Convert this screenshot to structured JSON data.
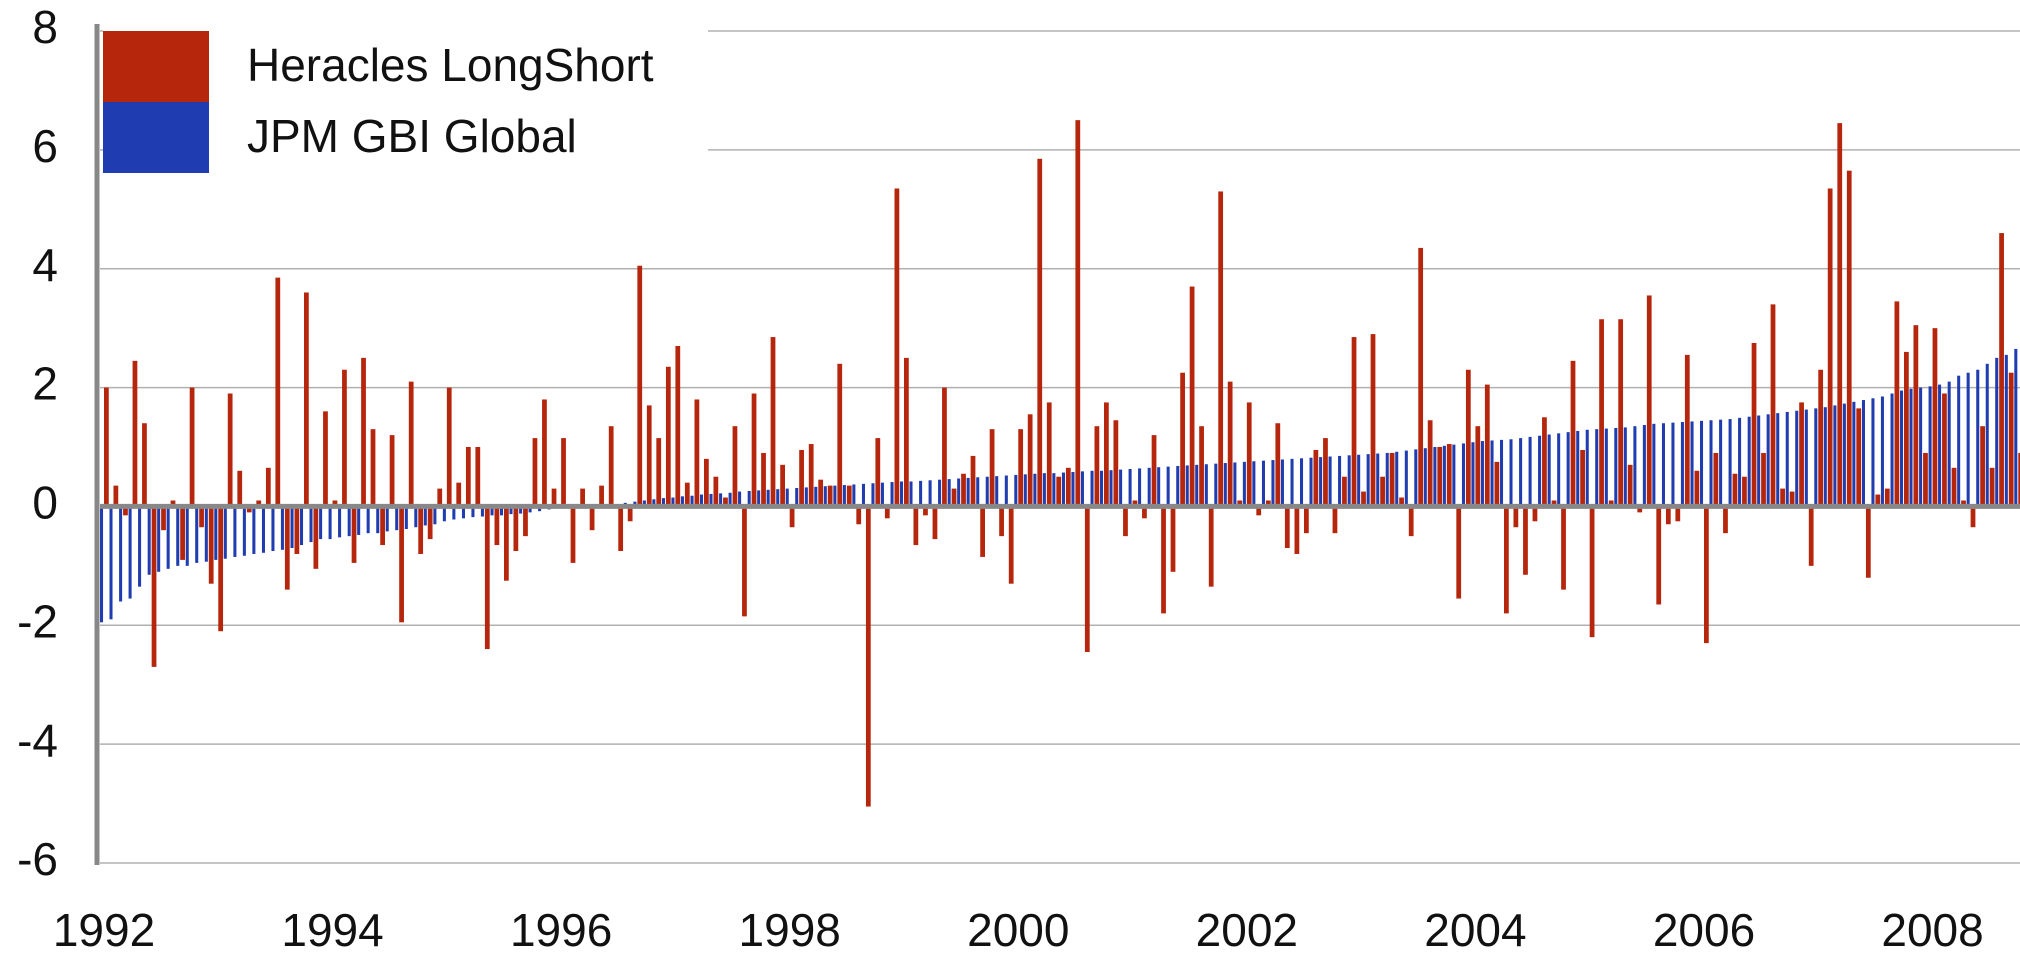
{
  "chart_data": {
    "type": "bar",
    "legend": "upper left",
    "grid": true,
    "xlim": [
      1992,
      2008.8
    ],
    "xticks": [
      1992,
      1994,
      1996,
      1998,
      2000,
      2002,
      2004,
      2006,
      2008
    ],
    "ylim": [
      -6,
      8
    ],
    "yticks": [
      -6,
      -4,
      -2,
      0,
      2,
      4,
      6,
      8
    ],
    "x": [
      1992.0,
      1992.083,
      1992.167,
      1992.25,
      1992.333,
      1992.417,
      1992.5,
      1992.583,
      1992.667,
      1992.75,
      1992.833,
      1992.917,
      1993.0,
      1993.083,
      1993.167,
      1993.25,
      1993.333,
      1993.417,
      1993.5,
      1993.583,
      1993.667,
      1993.75,
      1993.833,
      1993.917,
      1994.0,
      1994.083,
      1994.167,
      1994.25,
      1994.333,
      1994.417,
      1994.5,
      1994.583,
      1994.667,
      1994.75,
      1994.833,
      1994.917,
      1995.0,
      1995.083,
      1995.167,
      1995.25,
      1995.333,
      1995.417,
      1995.5,
      1995.583,
      1995.667,
      1995.75,
      1995.833,
      1995.917,
      1996.0,
      1996.083,
      1996.167,
      1996.25,
      1996.333,
      1996.417,
      1996.5,
      1996.583,
      1996.667,
      1996.75,
      1996.833,
      1996.917,
      1997.0,
      1997.083,
      1997.167,
      1997.25,
      1997.333,
      1997.417,
      1997.5,
      1997.583,
      1997.667,
      1997.75,
      1997.833,
      1997.917,
      1998.0,
      1998.083,
      1998.167,
      1998.25,
      1998.333,
      1998.417,
      1998.5,
      1998.583,
      1998.667,
      1998.75,
      1998.833,
      1998.917,
      1999.0,
      1999.083,
      1999.167,
      1999.25,
      1999.333,
      1999.417,
      1999.5,
      1999.583,
      1999.667,
      1999.75,
      1999.833,
      1999.917,
      2000.0,
      2000.083,
      2000.167,
      2000.25,
      2000.333,
      2000.417,
      2000.5,
      2000.583,
      2000.667,
      2000.75,
      2000.833,
      2000.917,
      2001.0,
      2001.083,
      2001.167,
      2001.25,
      2001.333,
      2001.417,
      2001.5,
      2001.583,
      2001.667,
      2001.75,
      2001.833,
      2001.917,
      2002.0,
      2002.083,
      2002.167,
      2002.25,
      2002.333,
      2002.417,
      2002.5,
      2002.583,
      2002.667,
      2002.75,
      2002.833,
      2002.917,
      2003.0,
      2003.083,
      2003.167,
      2003.25,
      2003.333,
      2003.417,
      2003.5,
      2003.583,
      2003.667,
      2003.75,
      2003.833,
      2003.917,
      2004.0,
      2004.083,
      2004.167,
      2004.25,
      2004.333,
      2004.417,
      2004.5,
      2004.583,
      2004.667,
      2004.75,
      2004.833,
      2004.917,
      2005.0,
      2005.083,
      2005.167,
      2005.25,
      2005.333,
      2005.417,
      2005.5,
      2005.583,
      2005.667,
      2005.75,
      2005.833,
      2005.917,
      2006.0,
      2006.083,
      2006.167,
      2006.25,
      2006.333,
      2006.417,
      2006.5,
      2006.583,
      2006.667,
      2006.75,
      2006.833,
      2006.917,
      2007.0,
      2007.083,
      2007.167,
      2007.25,
      2007.333,
      2007.417,
      2007.5,
      2007.583,
      2007.667,
      2007.75,
      2007.833,
      2007.917,
      2008.0,
      2008.083,
      2008.167,
      2008.25,
      2008.333,
      2008.417,
      2008.5,
      2008.583,
      2008.667,
      2008.75
    ],
    "series": [
      {
        "name": "Heracles LongShort",
        "color": "#b5260d",
        "values": [
          2.0,
          0.35,
          -0.15,
          2.45,
          1.4,
          -2.7,
          -0.4,
          0.1,
          -0.9,
          2.0,
          -0.35,
          -1.3,
          -2.1,
          1.9,
          0.6,
          -0.1,
          0.1,
          0.65,
          3.85,
          -1.4,
          -0.8,
          3.6,
          -1.05,
          1.6,
          0.1,
          2.3,
          -0.95,
          2.5,
          1.3,
          -0.65,
          1.2,
          -1.95,
          2.1,
          -0.8,
          -0.55,
          0.3,
          2.0,
          0.4,
          1.0,
          1.0,
          -2.4,
          -0.65,
          -1.25,
          -0.75,
          -0.5,
          1.15,
          1.8,
          0.3,
          1.15,
          -0.95,
          0.3,
          -0.4,
          0.35,
          1.35,
          -0.75,
          -0.25,
          4.05,
          1.7,
          1.15,
          2.35,
          2.7,
          0.4,
          1.8,
          0.8,
          0.5,
          0.15,
          1.35,
          -1.85,
          1.9,
          0.9,
          2.85,
          0.7,
          -0.35,
          0.95,
          1.05,
          0.45,
          0.35,
          2.4,
          0.35,
          -0.3,
          -5.05,
          1.15,
          -0.2,
          5.35,
          2.5,
          -0.65,
          -0.15,
          -0.55,
          2.0,
          0.3,
          0.55,
          0.85,
          -0.85,
          1.3,
          -0.5,
          -1.3,
          1.3,
          1.55,
          5.85,
          1.75,
          0.5,
          0.65,
          6.5,
          -2.45,
          1.35,
          1.75,
          1.45,
          -0.5,
          0.1,
          -0.2,
          1.2,
          -1.8,
          -1.1,
          2.25,
          3.7,
          1.35,
          -1.35,
          5.3,
          2.1,
          0.1,
          1.75,
          -0.15,
          0.1,
          1.4,
          -0.7,
          -0.8,
          -0.45,
          0.95,
          1.15,
          -0.45,
          0.5,
          2.85,
          0.25,
          2.9,
          0.5,
          0.9,
          0.15,
          -0.5,
          4.35,
          1.45,
          1.0,
          1.05,
          -1.55,
          2.3,
          1.35,
          2.05,
          0.75,
          -1.8,
          -0.35,
          -1.15,
          -0.25,
          1.5,
          0.1,
          -1.4,
          2.45,
          0.95,
          -2.2,
          3.15,
          0.1,
          3.15,
          0.7,
          -0.1,
          3.55,
          -1.65,
          -0.3,
          -0.25,
          2.55,
          0.6,
          -2.3,
          0.9,
          -0.45,
          0.55,
          0.5,
          2.75,
          0.9,
          3.4,
          0.3,
          0.25,
          1.75,
          -1.0,
          2.3,
          5.35,
          6.45,
          5.65,
          1.65,
          -1.2,
          0.2,
          0.3,
          3.45,
          2.6,
          3.05,
          0.9,
          3.0,
          1.9,
          0.65,
          0.1,
          -0.35,
          1.35,
          0.65,
          4.6,
          2.25,
          0.9
        ]
      },
      {
        "name": "JPM GBI Global",
        "color": "#1f3db0",
        "values": [
          -1.95,
          -1.9,
          -1.6,
          -1.55,
          -1.35,
          -1.15,
          -1.1,
          -1.05,
          -1.0,
          -1.0,
          -0.95,
          -0.93,
          -0.9,
          -0.88,
          -0.85,
          -0.83,
          -0.8,
          -0.78,
          -0.75,
          -0.73,
          -0.7,
          -0.65,
          -0.6,
          -0.55,
          -0.55,
          -0.52,
          -0.5,
          -0.48,
          -0.45,
          -0.45,
          -0.42,
          -0.4,
          -0.38,
          -0.35,
          -0.32,
          -0.3,
          -0.25,
          -0.22,
          -0.2,
          -0.18,
          -0.17,
          -0.15,
          -0.15,
          -0.13,
          -0.12,
          -0.1,
          -0.08,
          -0.05,
          -0.03,
          -0.02,
          -0.01,
          0.01,
          0.02,
          0.03,
          0.04,
          0.06,
          0.08,
          0.1,
          0.12,
          0.14,
          0.15,
          0.17,
          0.18,
          0.2,
          0.21,
          0.22,
          0.23,
          0.25,
          0.26,
          0.27,
          0.28,
          0.29,
          0.3,
          0.31,
          0.32,
          0.33,
          0.34,
          0.35,
          0.36,
          0.37,
          0.38,
          0.39,
          0.4,
          0.41,
          0.42,
          0.42,
          0.43,
          0.44,
          0.45,
          0.46,
          0.47,
          0.48,
          0.49,
          0.5,
          0.51,
          0.52,
          0.53,
          0.54,
          0.55,
          0.56,
          0.56,
          0.57,
          0.58,
          0.59,
          0.6,
          0.6,
          0.61,
          0.62,
          0.63,
          0.64,
          0.65,
          0.66,
          0.67,
          0.68,
          0.69,
          0.7,
          0.71,
          0.72,
          0.73,
          0.74,
          0.75,
          0.76,
          0.77,
          0.78,
          0.79,
          0.8,
          0.81,
          0.82,
          0.83,
          0.84,
          0.85,
          0.86,
          0.87,
          0.88,
          0.89,
          0.9,
          0.92,
          0.94,
          0.96,
          0.98,
          1.0,
          1.02,
          1.04,
          1.06,
          1.08,
          1.1,
          1.11,
          1.12,
          1.13,
          1.15,
          1.17,
          1.19,
          1.21,
          1.23,
          1.25,
          1.27,
          1.29,
          1.3,
          1.31,
          1.32,
          1.33,
          1.35,
          1.37,
          1.39,
          1.4,
          1.41,
          1.42,
          1.43,
          1.44,
          1.45,
          1.46,
          1.47,
          1.49,
          1.51,
          1.53,
          1.55,
          1.57,
          1.59,
          1.61,
          1.63,
          1.65,
          1.67,
          1.7,
          1.73,
          1.76,
          1.79,
          1.82,
          1.85,
          1.9,
          1.95,
          1.98,
          2.0,
          2.02,
          2.05,
          2.1,
          2.2,
          2.25,
          2.3,
          2.4,
          2.5,
          2.55,
          2.65
        ]
      }
    ]
  }
}
